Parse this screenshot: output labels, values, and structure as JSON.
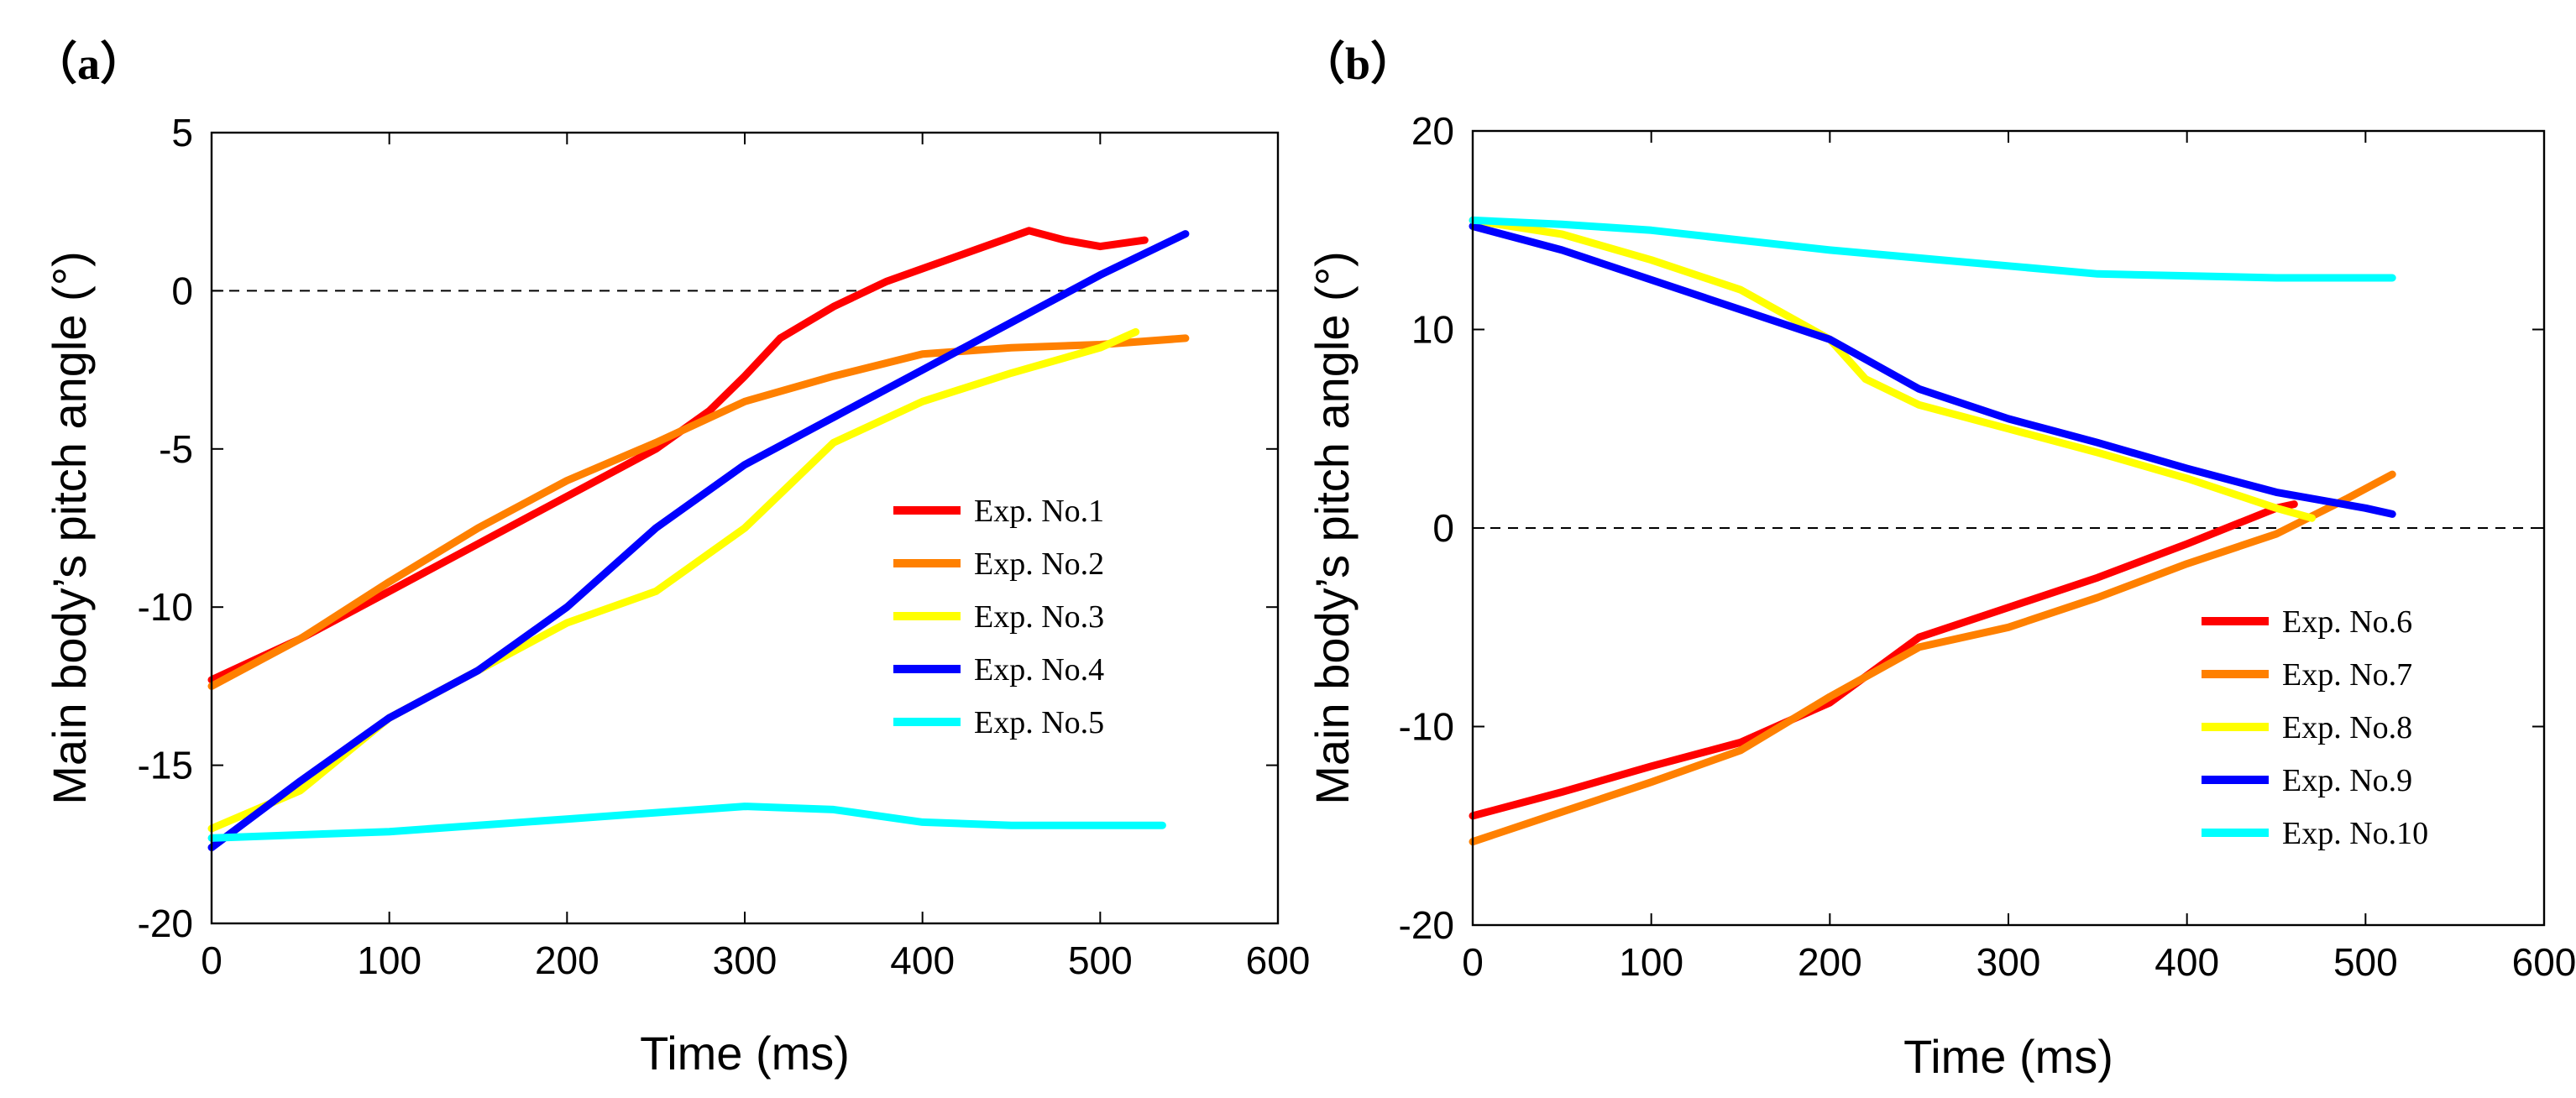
{
  "chart_data": [
    {
      "type": "line",
      "panel_label": "（a）",
      "xlabel": "Time (ms)",
      "ylabel": "Main body’s pitch angle (°)",
      "xlim": [
        0,
        600
      ],
      "ylim": [
        -20,
        5
      ],
      "xticks": [
        0,
        100,
        200,
        300,
        400,
        500,
        600
      ],
      "yticks": [
        -20,
        -15,
        -10,
        -5,
        0,
        5
      ],
      "grid": false,
      "reference_line": {
        "y": 0,
        "style": "dashed"
      },
      "legend_position": "right-center",
      "series": [
        {
          "name": "Exp. No.1",
          "color": "#ff0000",
          "x": [
            0,
            50,
            100,
            150,
            200,
            250,
            280,
            300,
            320,
            350,
            380,
            400,
            430,
            460,
            480,
            500,
            525
          ],
          "y": [
            -12.3,
            -11.0,
            -9.5,
            -8.0,
            -6.5,
            -5.0,
            -3.8,
            -2.7,
            -1.5,
            -0.5,
            0.3,
            0.7,
            1.3,
            1.9,
            1.6,
            1.4,
            1.6
          ]
        },
        {
          "name": "Exp. No.2",
          "color": "#ff8000",
          "x": [
            0,
            50,
            100,
            150,
            200,
            250,
            300,
            350,
            400,
            450,
            500,
            548
          ],
          "y": [
            -12.5,
            -11.0,
            -9.2,
            -7.5,
            -6.0,
            -4.8,
            -3.5,
            -2.7,
            -2.0,
            -1.8,
            -1.7,
            -1.5
          ]
        },
        {
          "name": "Exp. No.3",
          "color": "#ffff00",
          "x": [
            0,
            50,
            100,
            150,
            200,
            250,
            300,
            350,
            400,
            450,
            500,
            520
          ],
          "y": [
            -17.0,
            -15.8,
            -13.5,
            -12.0,
            -10.5,
            -9.5,
            -7.5,
            -4.8,
            -3.5,
            -2.6,
            -1.8,
            -1.3
          ]
        },
        {
          "name": "Exp. No.4",
          "color": "#0000ff",
          "x": [
            0,
            50,
            100,
            150,
            200,
            250,
            300,
            350,
            400,
            450,
            500,
            548
          ],
          "y": [
            -17.6,
            -15.5,
            -13.5,
            -12.0,
            -10.0,
            -7.5,
            -5.5,
            -4.0,
            -2.5,
            -1.0,
            0.5,
            1.8
          ]
        },
        {
          "name": "Exp. No.5",
          "color": "#00ffff",
          "x": [
            0,
            50,
            100,
            150,
            200,
            250,
            300,
            350,
            400,
            450,
            500,
            535
          ],
          "y": [
            -17.3,
            -17.2,
            -17.1,
            -16.9,
            -16.7,
            -16.5,
            -16.3,
            -16.4,
            -16.8,
            -16.9,
            -16.9,
            -16.9
          ]
        }
      ]
    },
    {
      "type": "line",
      "panel_label": "（b）",
      "xlabel": "Time (ms)",
      "ylabel": "Main body’s pitch angle (°)",
      "xlim": [
        0,
        600
      ],
      "ylim": [
        -20,
        20
      ],
      "xticks": [
        0,
        100,
        200,
        300,
        400,
        500,
        600
      ],
      "yticks": [
        -20,
        -10,
        0,
        10,
        20
      ],
      "grid": false,
      "reference_line": {
        "y": 0,
        "style": "dashed"
      },
      "legend_position": "bottom-right",
      "series": [
        {
          "name": "Exp. No.6",
          "color": "#ff0000",
          "x": [
            0,
            50,
            100,
            150,
            200,
            250,
            300,
            350,
            400,
            450,
            460
          ],
          "y": [
            -14.5,
            -13.3,
            -12.0,
            -10.8,
            -8.8,
            -5.5,
            -4.0,
            -2.5,
            -0.8,
            1.0,
            1.2
          ]
        },
        {
          "name": "Exp. No.7",
          "color": "#ff8000",
          "x": [
            0,
            50,
            100,
            150,
            200,
            250,
            300,
            350,
            400,
            450,
            490,
            515
          ],
          "y": [
            -15.8,
            -14.3,
            -12.8,
            -11.2,
            -8.5,
            -6.0,
            -5.0,
            -3.5,
            -1.8,
            -0.3,
            1.5,
            2.7
          ]
        },
        {
          "name": "Exp. No.8",
          "color": "#ffff00",
          "x": [
            0,
            50,
            100,
            150,
            200,
            220,
            250,
            300,
            350,
            400,
            450,
            470
          ],
          "y": [
            15.5,
            14.8,
            13.5,
            12.0,
            9.5,
            7.5,
            6.2,
            5.0,
            3.8,
            2.5,
            1.0,
            0.5
          ]
        },
        {
          "name": "Exp. No.9",
          "color": "#0000ff",
          "x": [
            0,
            50,
            100,
            150,
            200,
            250,
            300,
            350,
            400,
            450,
            500,
            515
          ],
          "y": [
            15.2,
            14.0,
            12.5,
            11.0,
            9.5,
            7.0,
            5.5,
            4.3,
            3.0,
            1.8,
            1.0,
            0.7
          ]
        },
        {
          "name": "Exp. No.10",
          "color": "#00ffff",
          "x": [
            0,
            50,
            100,
            150,
            200,
            250,
            300,
            350,
            400,
            450,
            500,
            515
          ],
          "y": [
            15.5,
            15.3,
            15.0,
            14.5,
            14.0,
            13.6,
            13.2,
            12.8,
            12.7,
            12.6,
            12.6,
            12.6
          ]
        }
      ]
    }
  ]
}
